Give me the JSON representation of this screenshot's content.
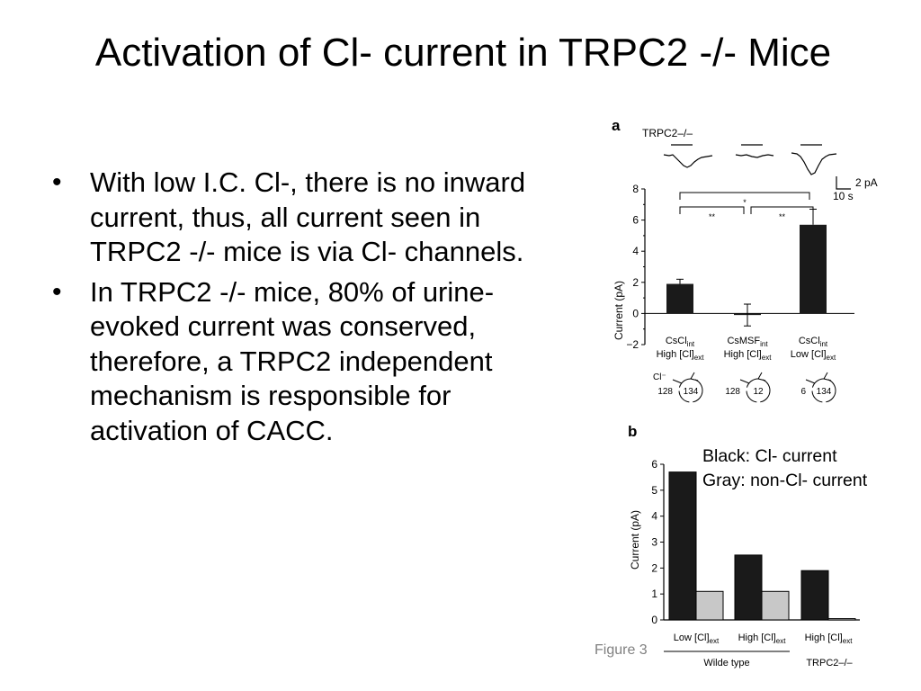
{
  "slide": {
    "title": "Activation of Cl- current in TRPC2 -/- Mice",
    "bullets": [
      "With low I.C. Cl-, there is no inward current, thus, all current seen in TRPC2 -/- mice is via Cl- channels.",
      "In TRPC2 -/- mice, 80% of urine-evoked current was conserved, therefore, a TRPC2 independent mechanism is responsible for activation of CACC."
    ],
    "bullet_glyph": "•",
    "legend": {
      "line1": "Black: Cl- current",
      "line2": "Gray: non-Cl- current"
    },
    "figure_label": "Figure 3"
  },
  "chart_data": [
    {
      "panel": "a",
      "type": "bar",
      "trace_label": "TRPC2–/–",
      "scale_bar": {
        "current": "2 pA",
        "time": "10 s"
      },
      "ylabel": "Current (pA)",
      "ylim": [
        -2,
        8
      ],
      "yticks": [
        "8",
        "6",
        "4",
        "2",
        "0",
        "−2"
      ],
      "categories": [
        {
          "salt": "CsCl",
          "salt_sub": "int",
          "ext": "High [Cl]",
          "ext_sub": "ext",
          "cl_out": "128",
          "cl_in": "134"
        },
        {
          "salt": "CsMSF",
          "salt_sub": "int",
          "ext": "High [Cl]",
          "ext_sub": "ext",
          "cl_out": "128",
          "cl_in": "12"
        },
        {
          "salt": "CsCl",
          "salt_sub": "int",
          "ext": "Low [Cl]",
          "ext_sub": "ext",
          "cl_out": "6",
          "cl_in": "134"
        }
      ],
      "cl_label": "Cl⁻",
      "values": [
        1.9,
        -0.1,
        5.7
      ],
      "errors": [
        0.3,
        0.7,
        1.0
      ],
      "significance": [
        {
          "from": 0,
          "to": 2,
          "label": "*"
        },
        {
          "from": 0,
          "to": 1,
          "label": "**"
        },
        {
          "from": 1,
          "to": 2,
          "label": "**"
        }
      ],
      "color": "#1a1a1a"
    },
    {
      "panel": "b",
      "type": "bar",
      "ylabel": "Current (pA)",
      "ylim": [
        0,
        6
      ],
      "yticks": [
        "6",
        "5",
        "4",
        "3",
        "2",
        "1",
        "0"
      ],
      "categories": [
        {
          "label": "Low [Cl]",
          "sub": "ext"
        },
        {
          "label": "High [Cl]",
          "sub": "ext"
        },
        {
          "label": "High [Cl]",
          "sub": "ext"
        }
      ],
      "groups": [
        "Wilde type",
        "TRPC2–/–"
      ],
      "series": [
        {
          "values": [
            5.7,
            2.5,
            1.9
          ],
          "color": "#1a1a1a"
        },
        {
          "values": [
            1.1,
            1.1,
            0.05
          ],
          "color": "#c8c8c8"
        }
      ]
    }
  ]
}
